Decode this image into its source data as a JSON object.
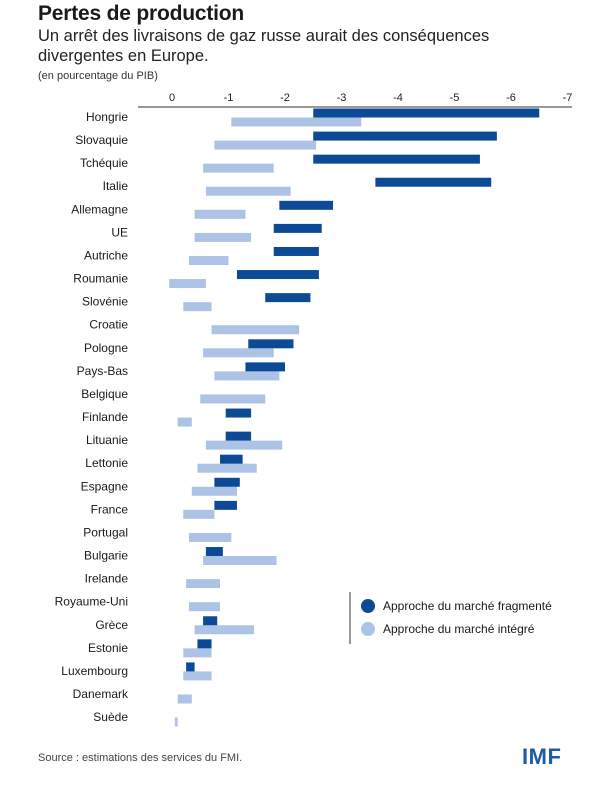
{
  "title": "Pertes de production",
  "subtitle": "Un arrêt des livraisons de gaz russe aurait des conséquences divergentes en Europe.",
  "unit_note": "(en pourcentage du PIB)",
  "source": "Source : estimations des services du FMI.",
  "logo": "IMF",
  "colors": {
    "fragmented": "#0d4a96",
    "integrated": "#adc3e6",
    "text": "#1a1a1a"
  },
  "chart_data": {
    "type": "floating-bar",
    "orientation": "horizontal",
    "x_axis": {
      "min": 0.1,
      "max": -7,
      "ticks": [
        "0",
        "-1",
        "-2",
        "-3",
        "-4",
        "-5",
        "-6",
        "-7"
      ],
      "tick_values": [
        0,
        -1,
        -2,
        -3,
        -4,
        -5,
        -6,
        -7
      ],
      "position": "top",
      "grid": false
    },
    "legend": {
      "placement": "bottom-right",
      "entries": [
        "Approche du marché fragmenté",
        "Approche du marché intégré"
      ]
    },
    "categories": [
      "Hongrie",
      "Slovaquie",
      "Tchéquie",
      "Italie",
      "Allemagne",
      "UE",
      "Autriche",
      "Roumanie",
      "Slovénie",
      "Croatie",
      "Pologne",
      "Pays-Bas",
      "Belgique",
      "Finlande",
      "Lituanie",
      "Lettonie",
      "Espagne",
      "France",
      "Portugal",
      "Bulgarie",
      "Irelande",
      "Royaume-Uni",
      "Grèce",
      "Estonie",
      "Luxembourg",
      "Danemark",
      "Suède"
    ],
    "series": [
      {
        "name": "Approche du marché fragmenté",
        "color": "#0d4a96",
        "ranges": [
          [
            -2.5,
            -6.5
          ],
          [
            -2.5,
            -5.75
          ],
          [
            -2.5,
            -5.45
          ],
          [
            -3.6,
            -5.65
          ],
          [
            -1.9,
            -2.85
          ],
          [
            -1.8,
            -2.65
          ],
          [
            -1.8,
            -2.6
          ],
          [
            -1.15,
            -2.6
          ],
          [
            -1.65,
            -2.45
          ],
          null,
          [
            -1.35,
            -2.15
          ],
          [
            -1.3,
            -2.0
          ],
          null,
          [
            -0.95,
            -1.4
          ],
          [
            -0.95,
            -1.4
          ],
          [
            -0.85,
            -1.25
          ],
          [
            -0.75,
            -1.2
          ],
          [
            -0.75,
            -1.15
          ],
          null,
          [
            -0.6,
            -0.9
          ],
          null,
          null,
          [
            -0.55,
            -0.8
          ],
          [
            -0.45,
            -0.7
          ],
          [
            -0.25,
            -0.4
          ],
          null,
          null
        ]
      },
      {
        "name": "Approche du marché intégré",
        "color": "#adc3e6",
        "ranges": [
          [
            -1.05,
            -3.35
          ],
          [
            -0.75,
            -2.55
          ],
          [
            -0.55,
            -1.8
          ],
          [
            -0.6,
            -2.1
          ],
          [
            -0.4,
            -1.3
          ],
          [
            -0.4,
            -1.4
          ],
          [
            -0.3,
            -1.0
          ],
          [
            0.05,
            -0.6
          ],
          [
            -0.2,
            -0.7
          ],
          [
            -0.7,
            -2.25
          ],
          [
            -0.55,
            -1.8
          ],
          [
            -0.75,
            -1.9
          ],
          [
            -0.5,
            -1.65
          ],
          [
            -0.1,
            -0.35
          ],
          [
            -0.6,
            -1.95
          ],
          [
            -0.45,
            -1.5
          ],
          [
            -0.35,
            -1.15
          ],
          [
            -0.2,
            -0.75
          ],
          [
            -0.3,
            -1.05
          ],
          [
            -0.55,
            -1.85
          ],
          [
            -0.25,
            -0.85
          ],
          [
            -0.3,
            -0.85
          ],
          [
            -0.4,
            -1.45
          ],
          [
            -0.2,
            -0.7
          ],
          [
            -0.2,
            -0.7
          ],
          [
            -0.1,
            -0.35
          ],
          [
            -0.05,
            -0.1
          ]
        ]
      }
    ]
  }
}
